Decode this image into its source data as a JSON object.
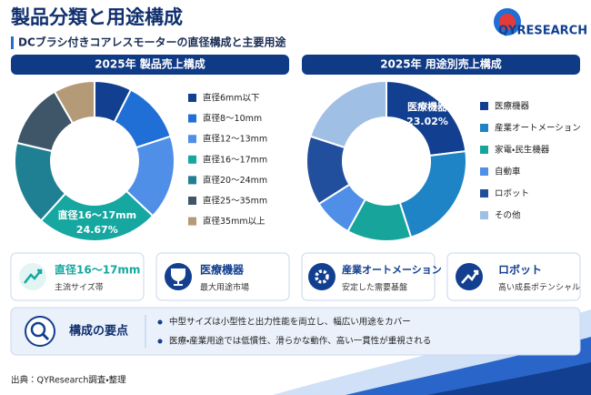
{
  "header": {
    "title": "製品分類と用途構成",
    "subtitle": "DCブラシ付きコアレスモーターの直径構成と主要用途",
    "logo": "QYRESEARCH"
  },
  "chart_data": [
    {
      "type": "donut",
      "title": "2025年 製品売上構成",
      "categories": [
        "直径6mm以下",
        "直径8～10mm",
        "直径12～13mm",
        "直径16～17mm",
        "直径20～24mm",
        "直径25～35mm",
        "直径35mm以上"
      ],
      "values": [
        7.5,
        12.5,
        17,
        24.67,
        17,
        13,
        8.33
      ],
      "value_labels": [
        null,
        null,
        null,
        "24.67%",
        null,
        null,
        null
      ],
      "colors": [
        "#123f8f",
        "#1f6fd6",
        "#4f8fe8",
        "#15a7a0",
        "#1f7f93",
        "#3f5669",
        "#b59a77"
      ]
    },
    {
      "type": "donut",
      "title": "2025年 用途別売上構成",
      "categories": [
        "医療機器",
        "産業オートメーション",
        "家電・民生機器",
        "自動車",
        "ロボット",
        "その他"
      ],
      "values": [
        23.02,
        22,
        13,
        8,
        14,
        19.98
      ],
      "value_labels": [
        "23.02%",
        null,
        null,
        null,
        null,
        null
      ],
      "colors": [
        "#123f8f",
        "#1e84c6",
        "#17a59b",
        "#4f8fe8",
        "#214f9e",
        "#9fbfe4"
      ]
    }
  ],
  "cards": [
    {
      "title": "直径16～17mm",
      "caption": "主流サイズ帯"
    },
    {
      "title": "医療機器",
      "caption": "最大用途市場"
    },
    {
      "title": "産業オートメーション",
      "caption": "安定した需要基盤"
    },
    {
      "title": "ロボット",
      "caption": "高い成長ポテンシャル"
    }
  ],
  "key_points": {
    "title": "構成の要点",
    "items": [
      "中型サイズは小型性と出力性能を両立し、幅広い用途をカバー",
      "医療・産業用途では低慣性、滑らかな動作、高い一貫性が重視される"
    ]
  },
  "source": "出典：QYResearch調査・整理"
}
